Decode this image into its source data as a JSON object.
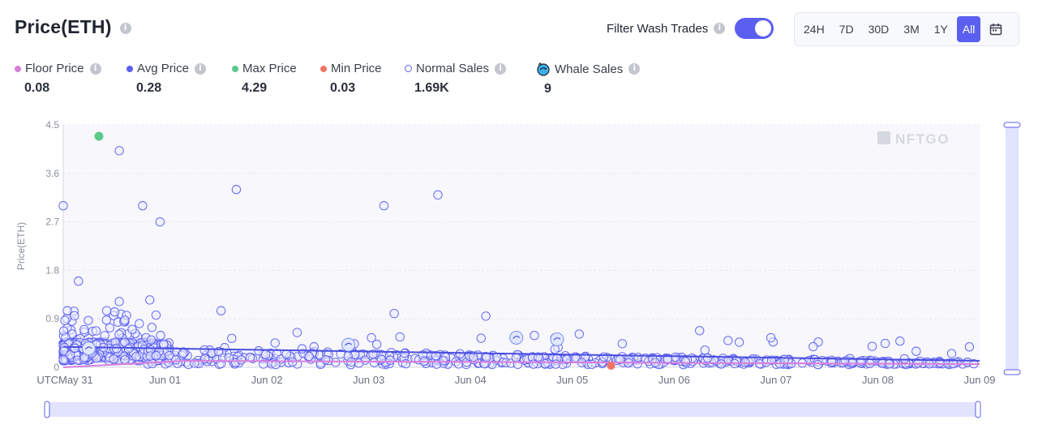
{
  "header": {
    "title": "Price(ETH)"
  },
  "filter": {
    "label": "Filter Wash Trades",
    "enabled": true
  },
  "ranges": {
    "items": [
      "24H",
      "7D",
      "30D",
      "3M",
      "1Y",
      "All"
    ],
    "active": "All"
  },
  "stats": [
    {
      "label": "Floor Price",
      "value": "0.08",
      "color": "#d77fdc",
      "kind": "dot",
      "info": true
    },
    {
      "label": "Avg Price",
      "value": "0.28",
      "color": "#5b5ff0",
      "kind": "dot",
      "info": true
    },
    {
      "label": "Max Price",
      "value": "4.29",
      "color": "#5cc98a",
      "kind": "dot",
      "info": false
    },
    {
      "label": "Min Price",
      "value": "0.03",
      "color": "#f07565",
      "kind": "dot",
      "info": false
    },
    {
      "label": "Normal Sales",
      "value": "1.69K",
      "color": "#5b5ff0",
      "kind": "ring",
      "info": true
    },
    {
      "label": "Whale Sales",
      "value": "9",
      "color": "#3ab0e8",
      "kind": "whale",
      "info": true
    }
  ],
  "chart_data": {
    "type": "scatter",
    "ylabel": "Price(ETH)",
    "watermark": "NFTGO",
    "ylim": [
      0,
      4.5
    ],
    "yticks": [
      "0",
      "0.9",
      "1.8",
      "2.7",
      "3.6",
      "4.5"
    ],
    "xticks": [
      "UTCMay 31",
      "Jun 01",
      "Jun 02",
      "Jun 03",
      "Jun 04",
      "Jun 05",
      "Jun 06",
      "Jun 07",
      "Jun 08",
      "Jun 09"
    ],
    "xlim": [
      0,
      9
    ],
    "max_point": {
      "x": 0.35,
      "y": 4.29
    },
    "min_point": {
      "x": 5.38,
      "y": 0.03
    },
    "notable_sales": [
      {
        "x": 0.55,
        "y": 4.02
      },
      {
        "x": 0.0,
        "y": 3.0
      },
      {
        "x": 0.78,
        "y": 3.0
      },
      {
        "x": 0.95,
        "y": 2.7
      },
      {
        "x": 1.7,
        "y": 3.3
      },
      {
        "x": 3.15,
        "y": 3.0
      },
      {
        "x": 3.68,
        "y": 3.2
      },
      {
        "x": 0.15,
        "y": 1.6
      },
      {
        "x": 0.55,
        "y": 1.22
      },
      {
        "x": 0.85,
        "y": 1.25
      },
      {
        "x": 1.55,
        "y": 1.05
      },
      {
        "x": 3.25,
        "y": 1.0
      },
      {
        "x": 4.15,
        "y": 0.95
      },
      {
        "x": 6.25,
        "y": 0.68
      },
      {
        "x": 6.95,
        "y": 0.55
      },
      {
        "x": 8.9,
        "y": 0.38
      }
    ],
    "whale_sales": [
      {
        "x": 2.8,
        "y": 0.42
      },
      {
        "x": 4.45,
        "y": 0.55
      },
      {
        "x": 4.85,
        "y": 0.52
      },
      {
        "x": 0.25,
        "y": 0.35
      }
    ],
    "avg_line": [
      {
        "x": 0,
        "y": 0.38
      },
      {
        "x": 9,
        "y": 0.12
      }
    ],
    "floor_line": [
      {
        "x": 0,
        "y": 0.0
      },
      {
        "x": 1.2,
        "y": 0.12
      },
      {
        "x": 9,
        "y": 0.06
      }
    ]
  }
}
